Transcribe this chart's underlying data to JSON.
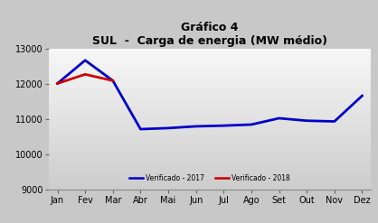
{
  "title_line1": "Gráfico 4",
  "title_line2": "SUL  -  Carga de energia (MW médio)",
  "months": [
    "Jan",
    "Fev",
    "Mar",
    "Abr",
    "Mai",
    "Jun",
    "Jul",
    "Ago",
    "Set",
    "Out",
    "Nov",
    "Dez"
  ],
  "series_2017": [
    12020,
    12680,
    12100,
    10720,
    10750,
    10800,
    10820,
    10850,
    11030,
    10960,
    10940,
    11670
  ],
  "series_2018": [
    12020,
    12280,
    12100,
    null,
    null,
    null,
    null,
    null,
    null,
    null,
    null,
    null
  ],
  "color_2017": "#0000cc",
  "color_2018": "#cc0000",
  "ylim": [
    9000,
    13000
  ],
  "yticks": [
    9000,
    10000,
    11000,
    12000,
    13000
  ],
  "legend_2017": "Verificado - 2017",
  "legend_2018": "Verificado - 2018",
  "bg_color_outer": "#c8c8c8",
  "line_width": 2.0,
  "title_fontsize": 9,
  "subtitle_fontsize": 8.5,
  "tick_fontsize": 7
}
